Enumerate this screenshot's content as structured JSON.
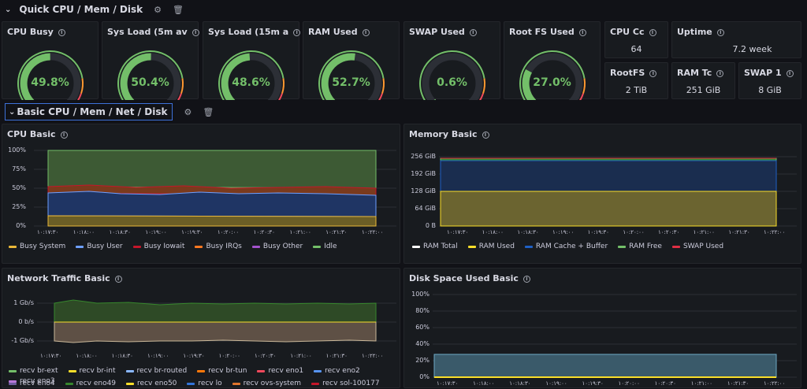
{
  "rows": {
    "quick": {
      "title": "Quick CPU / Mem / Disk"
    },
    "basic": {
      "title": "Basic CPU / Mem / Net / Disk"
    }
  },
  "gauges": [
    {
      "title": "CPU Busy",
      "value": "49.8%",
      "level": 0.498
    },
    {
      "title": "Sys Load (5m av",
      "value": "50.4%",
      "level": 0.504
    },
    {
      "title": "Sys Load (15m a",
      "value": "48.6%",
      "level": 0.486
    },
    {
      "title": "RAM Used",
      "value": "52.7%",
      "level": 0.527
    },
    {
      "title": "SWAP Used",
      "value": "0.6%",
      "level": 0.006
    },
    {
      "title": "Root FS Used",
      "value": "27.0%",
      "level": 0.27
    }
  ],
  "stats": {
    "cpu_cores": {
      "title": "CPU Cc",
      "value": "64"
    },
    "uptime": {
      "title": "Uptime",
      "value": "7.2 week"
    },
    "rootfs": {
      "title": "RootFS",
      "value": "2 TiB"
    },
    "ram_total": {
      "title": "RAM Tc",
      "value": "251 GiB"
    },
    "swap_total": {
      "title": "SWAP 1",
      "value": "8 GiB"
    }
  },
  "time_ticks": [
    "۱۰:۱۷:۳۰",
    "۱۰:۱۸:۰۰",
    "۱۰:۱۸:۳۰",
    "۱۰:۱۹:۰۰",
    "۱۰:۱۹:۳۰",
    "۱۰:۲۰:۰۰",
    "۱۰:۲۰:۳۰",
    "۱۰:۲۱:۰۰",
    "۱۰:۲۱:۳۰",
    "۱۰:۲۲:۰۰"
  ],
  "cpu_basic": {
    "title": "CPU Basic",
    "y_ticks": [
      "100%",
      "75%",
      "50%",
      "25%",
      "0%"
    ],
    "legend": [
      {
        "label": "Busy System",
        "color": "#eab839"
      },
      {
        "label": "Busy User",
        "color": "#6e9fff"
      },
      {
        "label": "Busy Iowait",
        "color": "#c4162a"
      },
      {
        "label": "Busy IRQs",
        "color": "#ff7820"
      },
      {
        "label": "Busy Other",
        "color": "#a352cc"
      },
      {
        "label": "Idle",
        "color": "#73bf69"
      }
    ]
  },
  "memory_basic": {
    "title": "Memory Basic",
    "y_ticks": [
      "256 GiB",
      "192 GiB",
      "128 GiB",
      "64 GiB",
      "0 B"
    ],
    "legend": [
      {
        "label": "RAM Total",
        "color": "#ffffff"
      },
      {
        "label": "RAM Used",
        "color": "#fade2a"
      },
      {
        "label": "RAM Cache + Buffer",
        "color": "#1f60c4"
      },
      {
        "label": "RAM Free",
        "color": "#73bf69"
      },
      {
        "label": "SWAP Used",
        "color": "#e02f44"
      }
    ]
  },
  "network_basic": {
    "title": "Network Traffic Basic",
    "y_ticks": [
      "1 Gb/s",
      "0 b/s",
      "-1 Gb/s"
    ],
    "legend_row1": [
      {
        "label": "recv br-ext",
        "color": "#73bf69"
      },
      {
        "label": "recv br-int",
        "color": "#fade2a"
      },
      {
        "label": "recv br-routed",
        "color": "#8ab8ff"
      },
      {
        "label": "recv br-tun",
        "color": "#ff780a"
      },
      {
        "label": "recv eno1",
        "color": "#f2495c"
      },
      {
        "label": "recv eno2",
        "color": "#5794f2"
      },
      {
        "label": "recv eno3",
        "color": "#b877d9"
      }
    ],
    "legend_row2": [
      {
        "label": "recv eno4",
        "color": "#705da0"
      },
      {
        "label": "recv eno49",
        "color": "#37872d"
      },
      {
        "label": "recv eno50",
        "color": "#fade2a"
      },
      {
        "label": "recv lo",
        "color": "#3274d9"
      },
      {
        "label": "recv ovs-system",
        "color": "#e0752d"
      },
      {
        "label": "recv sol-100177",
        "color": "#c4162a"
      }
    ]
  },
  "disk_basic": {
    "title": "Disk Space Used Basic",
    "y_ticks": [
      "100%",
      "80%",
      "60%",
      "40%",
      "20%",
      "0%"
    ]
  }
}
